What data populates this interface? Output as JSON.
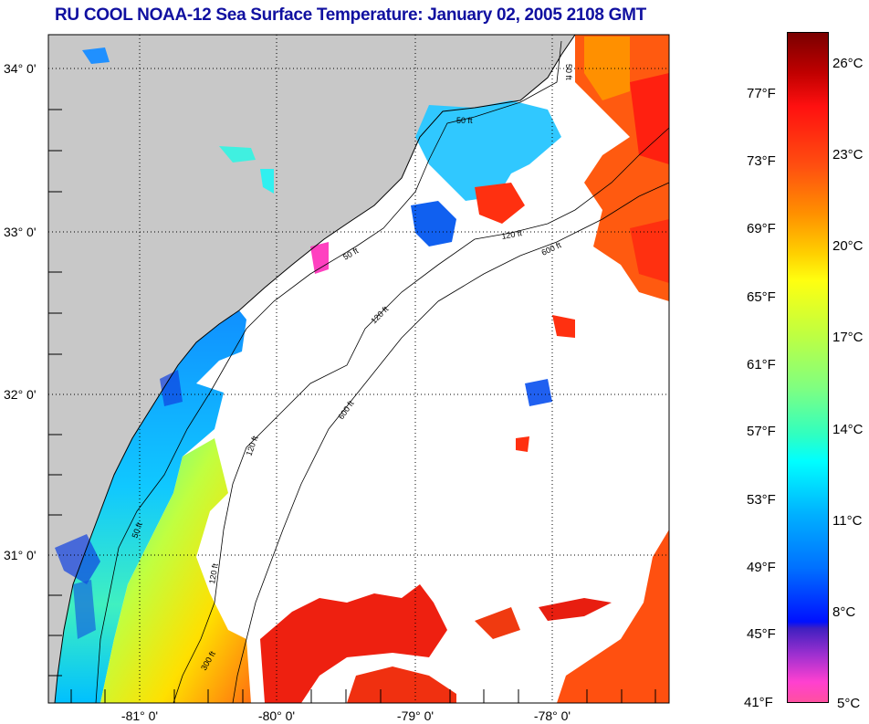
{
  "title": "RU COOL  NOAA-12  Sea Surface Temperature:  January 02, 2005 2108 GMT",
  "axes": {
    "lat_labels": [
      "34° 0'",
      "33° 0'",
      "32° 0'",
      "31° 0'"
    ],
    "lon_labels": [
      "-81° 0'",
      "-80° 0'",
      "-79° 0'",
      "-78° 0'"
    ]
  },
  "contours": {
    "labels": [
      "50 ft",
      "50 ft",
      "50 ft",
      "50 ft",
      "120 ft",
      "120 ft",
      "120 ft",
      "120 ft",
      "600 ft",
      "600 ft",
      "300 ft"
    ]
  },
  "colorbar": {
    "fahrenheit": [
      "77°F",
      "73°F",
      "69°F",
      "65°F",
      "61°F",
      "57°F",
      "53°F",
      "49°F",
      "45°F",
      "41°F"
    ],
    "celsius": [
      "26°C",
      "23°C",
      "20°C",
      "17°C",
      "14°C",
      "11°C",
      "8°C",
      "5°C"
    ],
    "range_c": [
      5,
      28
    ]
  },
  "colors": {
    "land": "#c8c8c8",
    "title": "#1010a0"
  }
}
